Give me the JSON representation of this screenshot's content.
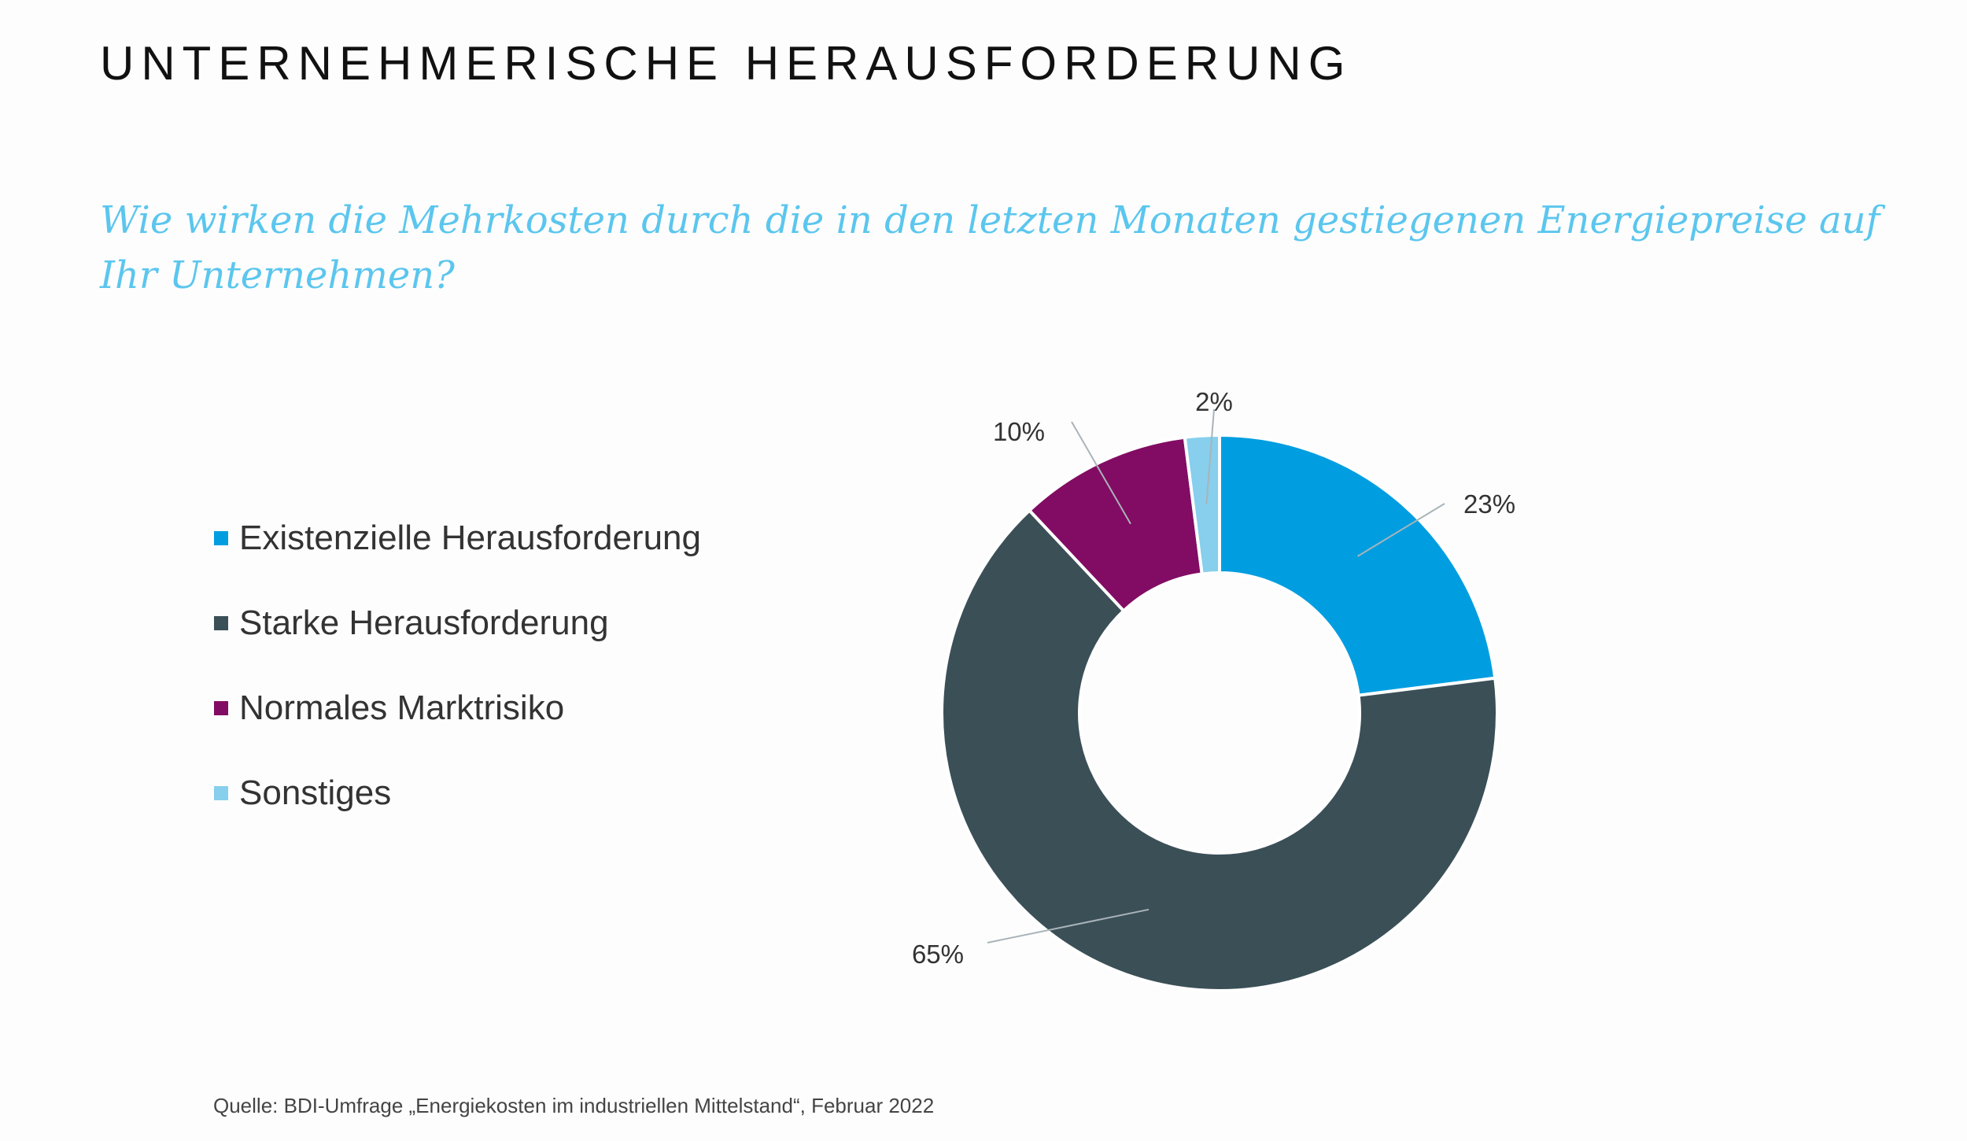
{
  "header": {
    "title": "UNTERNEHMERISCHE HERAUSFORDERUNG",
    "subtitle": "Wie wirken die Mehrkosten durch die in den letzten Monaten gestiegenen Energiepreise auf Ihr Unternehmen?"
  },
  "chart_data": {
    "type": "pie",
    "variant": "donut",
    "categories": [
      "Existenzielle Herausforderung",
      "Starke Herausforderung",
      "Normales Marktrisiko",
      "Sonstiges"
    ],
    "values": [
      23,
      65,
      10,
      2
    ],
    "data_labels": [
      "23%",
      "65%",
      "10%",
      "2%"
    ],
    "colors": [
      "#009ee0",
      "#3b4f57",
      "#820c63",
      "#87cfec"
    ],
    "legend_position": "left"
  },
  "footer": {
    "source": "Quelle: BDI-Umfrage „Energiekosten im industriellen Mittelstand“, Februar 2022"
  }
}
